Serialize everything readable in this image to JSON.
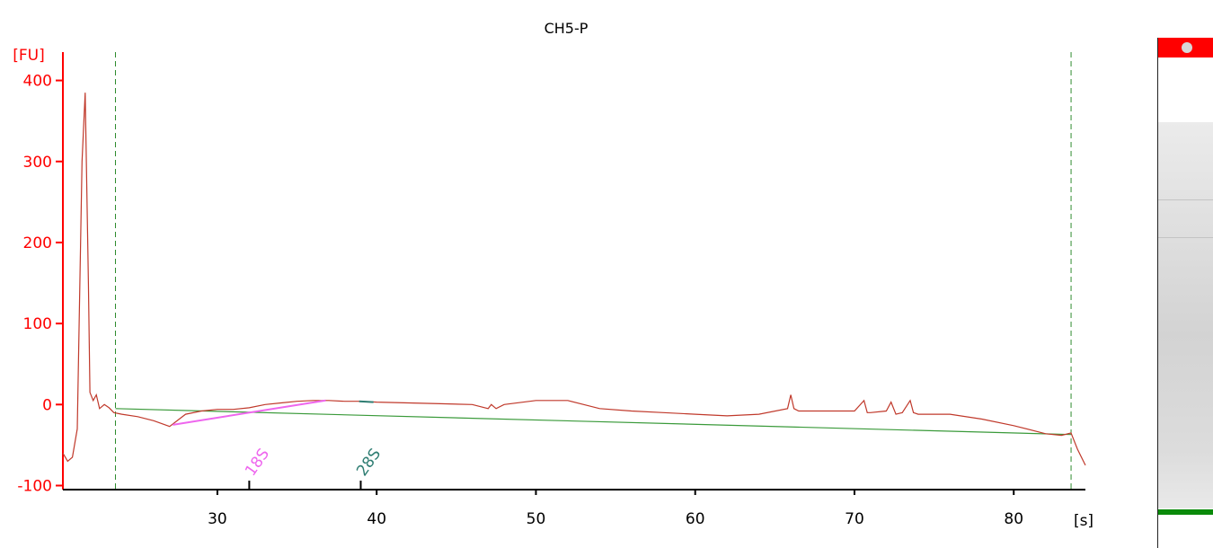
{
  "chart_data": {
    "type": "line",
    "title": "CH5-P",
    "ylabel": "[FU]",
    "xlabel": "[s]",
    "xlim": [
      20.3,
      84.5
    ],
    "ylim": [
      -105,
      435
    ],
    "x_ticks": [
      30,
      40,
      50,
      60,
      70,
      80
    ],
    "y_ticks": [
      -100,
      0,
      100,
      200,
      300,
      400
    ],
    "grid": false,
    "colors": {
      "trace": "#c0392b",
      "axis_y": "#ff0000",
      "baseline": "#3a9a3a",
      "peak18S": "#ee66ee",
      "peak28S": "#2e7d72",
      "marker": "#2e8b2e"
    },
    "series": [
      {
        "color": "#c0392b",
        "x": [
          20.3,
          20.6,
          20.9,
          21.2,
          21.5,
          21.7,
          21.9,
          22.0,
          22.2,
          22.4,
          22.6,
          22.9,
          23.2,
          23.5,
          24.0,
          25.0,
          26.0,
          27.0,
          28.0,
          29.0,
          30.0,
          31.0,
          32.0,
          33.0,
          34.0,
          35.0,
          36.0,
          37.0,
          38.0,
          39.0,
          40.0,
          42.0,
          44.0,
          46.0,
          47.0,
          47.2,
          47.5,
          48.0,
          50.0,
          52.0,
          53.0,
          54.0,
          56.0,
          58.0,
          60.0,
          62.0,
          64.0,
          65.8,
          66.0,
          66.2,
          66.5,
          68.0,
          70.0,
          70.6,
          70.8,
          71.0,
          72.0,
          72.3,
          72.6,
          73.0,
          73.5,
          73.7,
          74.0,
          76.0,
          78.0,
          80.0,
          82.0,
          83.0,
          83.6,
          84.0,
          84.5
        ],
        "y": [
          -60,
          -70,
          -65,
          -30,
          300,
          385,
          150,
          15,
          5,
          12,
          -5,
          0,
          -4,
          -10,
          -12,
          -15,
          -20,
          -27,
          -12,
          -8,
          -6,
          -6,
          -4,
          0,
          2,
          4,
          5,
          5,
          4,
          4,
          3,
          2,
          1,
          0,
          -5,
          0,
          -5,
          0,
          5,
          5,
          0,
          -5,
          -8,
          -10,
          -12,
          -14,
          -12,
          -5,
          12,
          -5,
          -8,
          -8,
          -8,
          5,
          -10,
          -10,
          -8,
          3,
          -12,
          -10,
          5,
          -10,
          -12,
          -12,
          -18,
          -26,
          -36,
          -38,
          -35,
          -55,
          -75
        ]
      }
    ],
    "baseline": {
      "x": [
        23.6,
        83.6
      ],
      "y": [
        -5,
        -37
      ]
    },
    "markers": [
      {
        "label": "18S",
        "x": 32.0
      },
      {
        "label": "28S",
        "x": 39.0
      }
    ],
    "peaks": [
      {
        "name": "18S",
        "x": [
          27.2,
          36.8
        ],
        "y": [
          -25,
          5
        ]
      },
      {
        "name": "28S",
        "x": [
          38.9,
          39.8
        ],
        "y": [
          4,
          3
        ]
      }
    ],
    "dashed_lines_x": [
      23.6,
      83.6
    ]
  },
  "gel": {
    "top_color": "#ff0000",
    "marker_color": "#0a8a0a"
  }
}
